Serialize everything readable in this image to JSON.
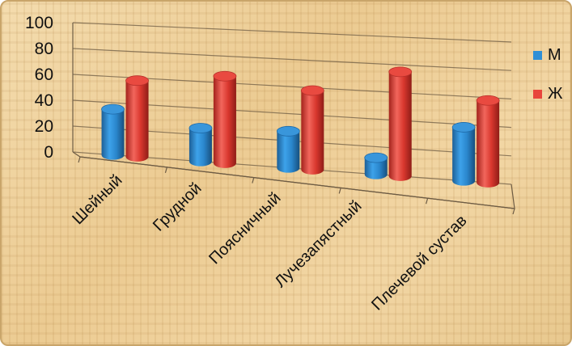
{
  "chart_data": {
    "type": "bar",
    "categories": [
      "Шейный",
      "Грудной",
      "Поясничный",
      "Лучезапястный",
      "Плечевой сустав"
    ],
    "series": [
      {
        "name": "М",
        "values": [
          35,
          25,
          27,
          12,
          38
        ],
        "color": "#2f8fd6"
      },
      {
        "name": "Ж",
        "values": [
          58,
          65,
          58,
          75,
          58
        ],
        "color": "#e8453c"
      }
    ],
    "ylim": [
      0,
      100
    ],
    "yticks": [
      "100",
      "80",
      "60",
      "40",
      "20",
      "0"
    ],
    "grid": true,
    "legend_position": "right",
    "perspective": "3d-cylinder"
  }
}
